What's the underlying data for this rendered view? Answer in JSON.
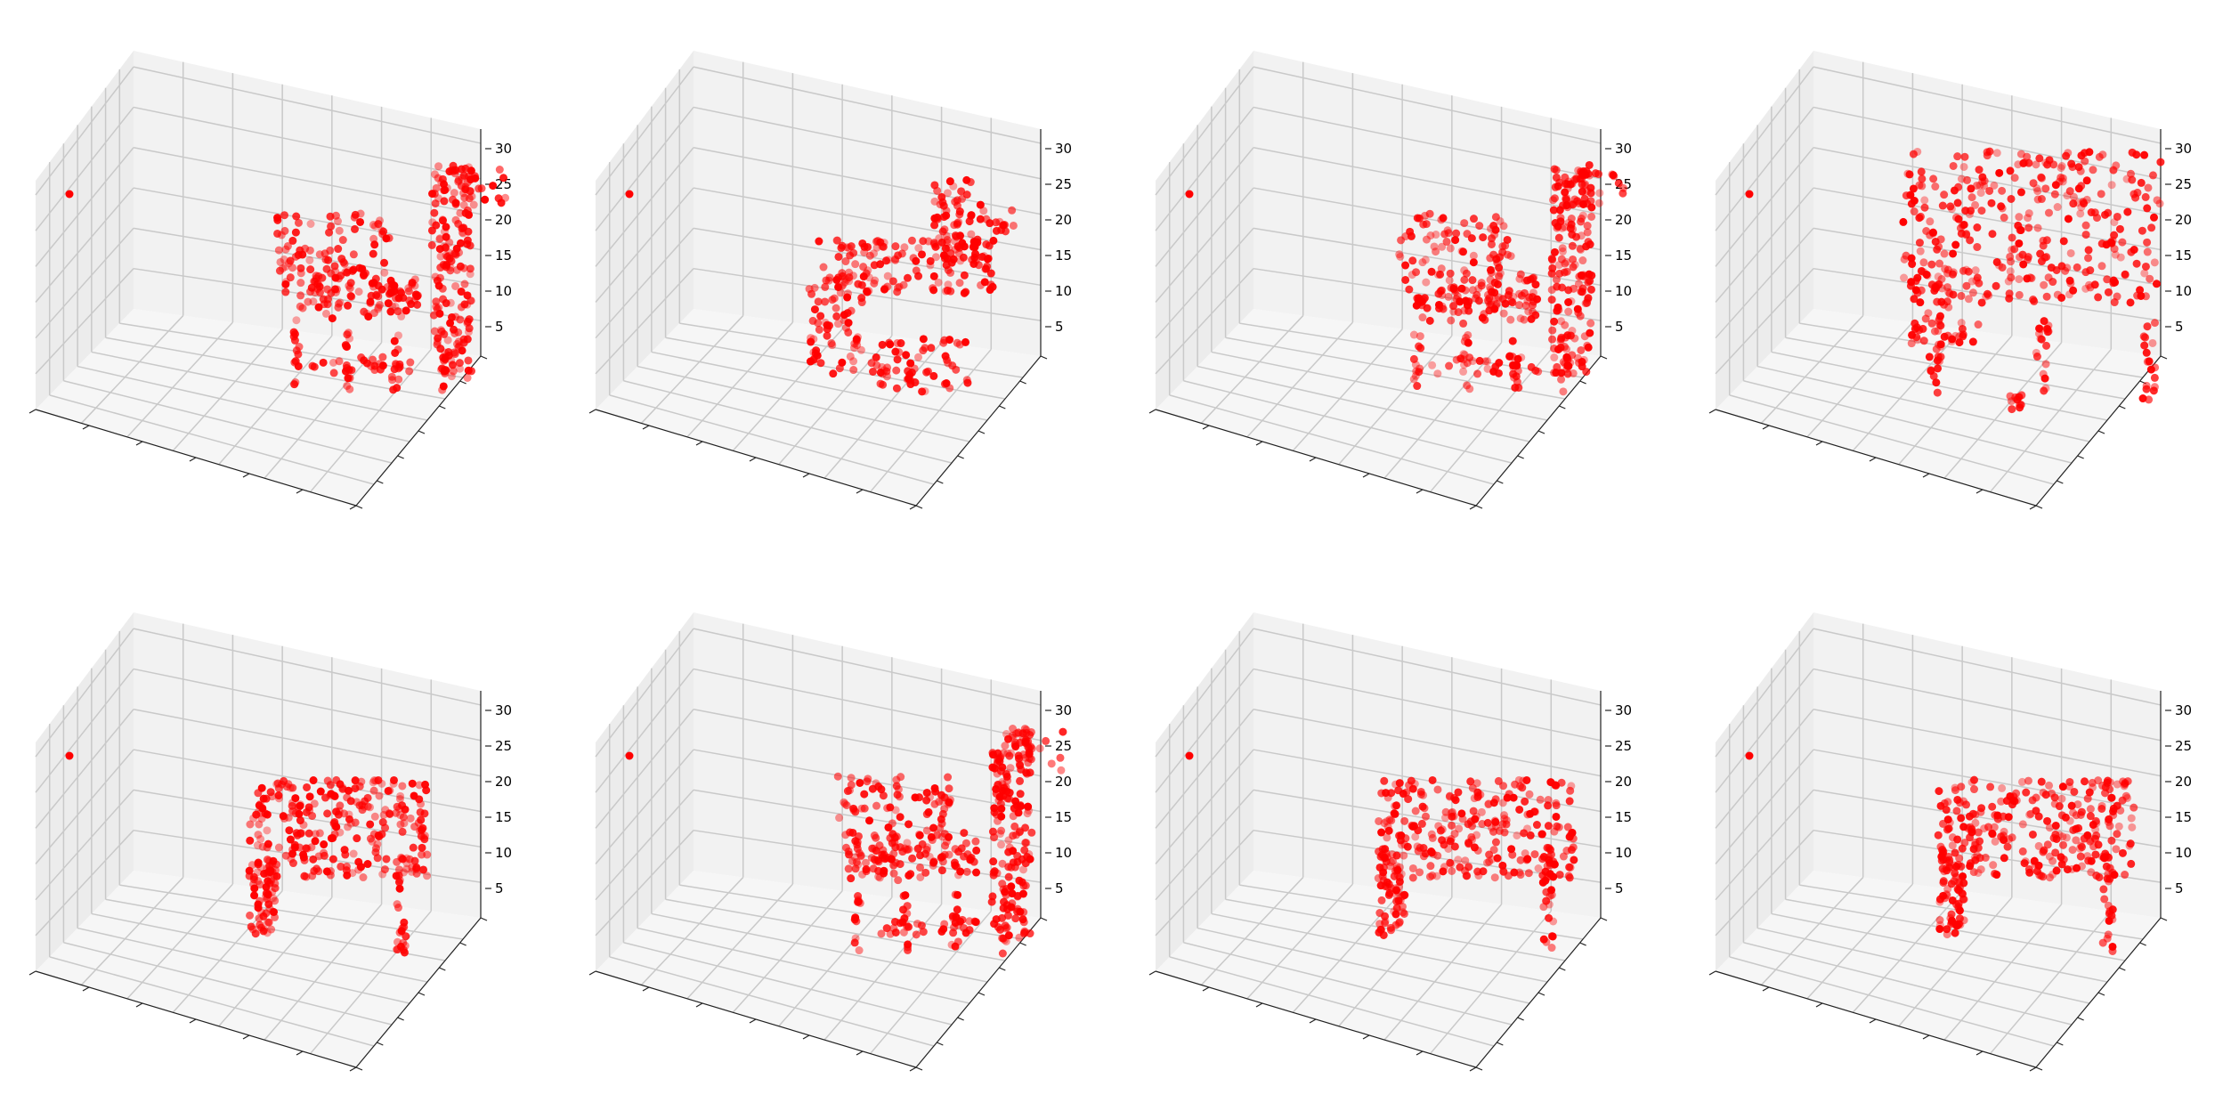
{
  "figure": {
    "layout": "2 rows x 4 columns of 3D scatter (voxel) plots",
    "marker_color": "#ff0000",
    "pane_colors": {
      "left": "#ececec",
      "back": "#f2f2f2",
      "floor": "#f6f6f6"
    },
    "grid_color": "#c9c9c9"
  },
  "chart_data": [
    {
      "type": "scatter",
      "projection": "3d",
      "title": "",
      "xlabel": "",
      "ylabel": "",
      "zlabel": "",
      "z_ticks": [
        "5",
        "10",
        "15",
        "20",
        "25",
        "30"
      ],
      "zlim": [
        0,
        32
      ],
      "x_ticklabels_hidden": true,
      "y_ticklabels_hidden": true,
      "shape": "chair with tall back (side view)",
      "z_extent": [
        3,
        26
      ],
      "grid": true,
      "series": [
        {
          "marker_color": "#ff0000"
        }
      ]
    },
    {
      "type": "scatter",
      "projection": "3d",
      "title": "",
      "xlabel": "",
      "ylabel": "",
      "zlabel": "",
      "z_ticks": [
        "5",
        "10",
        "15",
        "20",
        "25",
        "30"
      ],
      "zlim": [
        0,
        32
      ],
      "x_ticklabels_hidden": true,
      "y_ticklabels_hidden": true,
      "shape": "chair, rotated view",
      "z_extent": [
        2,
        24
      ],
      "grid": true,
      "series": [
        {
          "marker_color": "#ff0000"
        }
      ]
    },
    {
      "type": "scatter",
      "projection": "3d",
      "title": "",
      "xlabel": "",
      "ylabel": "",
      "zlabel": "",
      "z_ticks": [
        "5",
        "10",
        "15",
        "20",
        "25",
        "30"
      ],
      "zlim": [
        0,
        32
      ],
      "x_ticklabels_hidden": true,
      "y_ticklabels_hidden": true,
      "shape": "chair with tall back (side view)",
      "z_extent": [
        3,
        26
      ],
      "grid": true,
      "series": [
        {
          "marker_color": "#ff0000"
        }
      ]
    },
    {
      "type": "scatter",
      "projection": "3d",
      "title": "",
      "xlabel": "",
      "ylabel": "",
      "zlabel": "",
      "z_ticks": [
        "5",
        "10",
        "15",
        "20",
        "25",
        "30"
      ],
      "zlim": [
        0,
        32
      ],
      "x_ticklabels_hidden": true,
      "y_ticklabels_hidden": true,
      "shape": "armchair, dense",
      "z_extent": [
        2,
        25
      ],
      "grid": true,
      "series": [
        {
          "marker_color": "#ff0000"
        }
      ]
    },
    {
      "type": "scatter",
      "projection": "3d",
      "title": "",
      "xlabel": "",
      "ylabel": "",
      "zlabel": "",
      "z_ticks": [
        "5",
        "10",
        "15",
        "20",
        "25",
        "30"
      ],
      "zlim": [
        0,
        32
      ],
      "x_ticklabels_hidden": true,
      "y_ticklabels_hidden": true,
      "shape": "table / stool",
      "z_extent": [
        2,
        21
      ],
      "grid": true,
      "series": [
        {
          "marker_color": "#ff0000"
        }
      ]
    },
    {
      "type": "scatter",
      "projection": "3d",
      "title": "",
      "xlabel": "",
      "ylabel": "",
      "zlabel": "",
      "z_ticks": [
        "5",
        "10",
        "15",
        "20",
        "25",
        "30"
      ],
      "zlim": [
        0,
        32
      ],
      "x_ticklabels_hidden": true,
      "y_ticklabels_hidden": true,
      "shape": "chair with tall back (side view)",
      "z_extent": [
        3,
        26
      ],
      "grid": true,
      "series": [
        {
          "marker_color": "#ff0000"
        }
      ]
    },
    {
      "type": "scatter",
      "projection": "3d",
      "title": "",
      "xlabel": "",
      "ylabel": "",
      "zlabel": "",
      "z_ticks": [
        "5",
        "10",
        "15",
        "20",
        "25",
        "30"
      ],
      "zlim": [
        0,
        32
      ],
      "x_ticklabels_hidden": true,
      "y_ticklabels_hidden": true,
      "shape": "table / bench",
      "z_extent": [
        2,
        21
      ],
      "grid": true,
      "series": [
        {
          "marker_color": "#ff0000"
        }
      ]
    },
    {
      "type": "scatter",
      "projection": "3d",
      "title": "",
      "xlabel": "",
      "ylabel": "",
      "zlabel": "",
      "z_ticks": [
        "5",
        "10",
        "15",
        "20",
        "25",
        "30"
      ],
      "zlim": [
        0,
        32
      ],
      "x_ticklabels_hidden": true,
      "y_ticklabels_hidden": true,
      "shape": "table / bench",
      "z_extent": [
        2,
        21
      ],
      "grid": true,
      "series": [
        {
          "marker_color": "#ff0000"
        }
      ]
    }
  ]
}
